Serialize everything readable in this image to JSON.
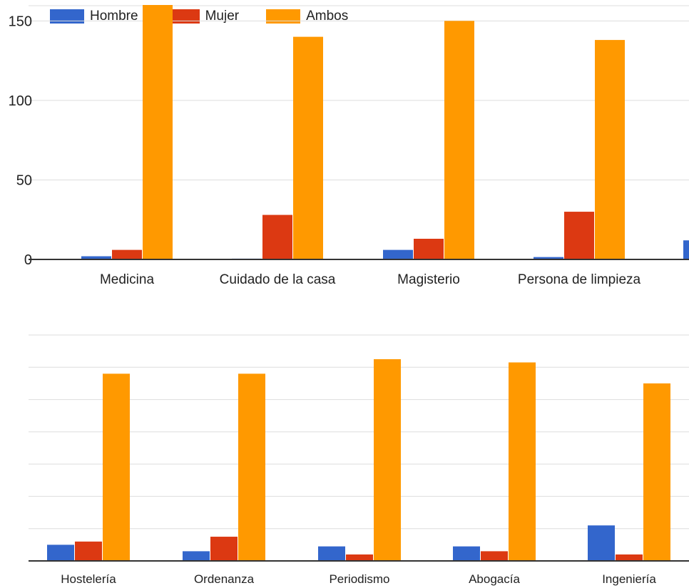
{
  "colors": {
    "Hombre": "#3366cc",
    "Mujer": "#dc3912",
    "Ambos": "#ff9900",
    "grid": "#dddddd",
    "axis": "#333333"
  },
  "legend": [
    {
      "name": "Hombre",
      "color": "#3366cc"
    },
    {
      "name": "Mujer",
      "color": "#dc3912"
    },
    {
      "name": "Ambos",
      "color": "#ff9900"
    }
  ],
  "chart_data": [
    {
      "type": "bar",
      "categories": [
        "Medicina",
        "Cuidado de la casa",
        "Magisterio",
        "Persona de limpieza"
      ],
      "series": [
        {
          "name": "Hombre",
          "values": [
            2,
            0.5,
            6,
            1.5
          ]
        },
        {
          "name": "Mujer",
          "values": [
            6,
            28,
            13,
            30
          ]
        },
        {
          "name": "Ambos",
          "values": [
            160,
            140,
            150,
            138
          ]
        }
      ],
      "partial_next_category": {
        "series": "Hombre",
        "value": 12
      },
      "ylim": [
        0,
        160
      ],
      "yticks": [
        0,
        50,
        100,
        150
      ],
      "legend_position": "top-left",
      "grid": true
    },
    {
      "type": "bar",
      "categories": [
        "Hostelería",
        "Ordenanza",
        "Periodismo",
        "Abogacía",
        "Ingeniería"
      ],
      "series": [
        {
          "name": "Hombre",
          "values": [
            10,
            6,
            9,
            9,
            22
          ]
        },
        {
          "name": "Mujer",
          "values": [
            12,
            15,
            4,
            6,
            4
          ]
        },
        {
          "name": "Ambos",
          "values": [
            116,
            116,
            125,
            123,
            110
          ]
        }
      ],
      "ylim": [
        0,
        140
      ],
      "grid": true
    }
  ]
}
